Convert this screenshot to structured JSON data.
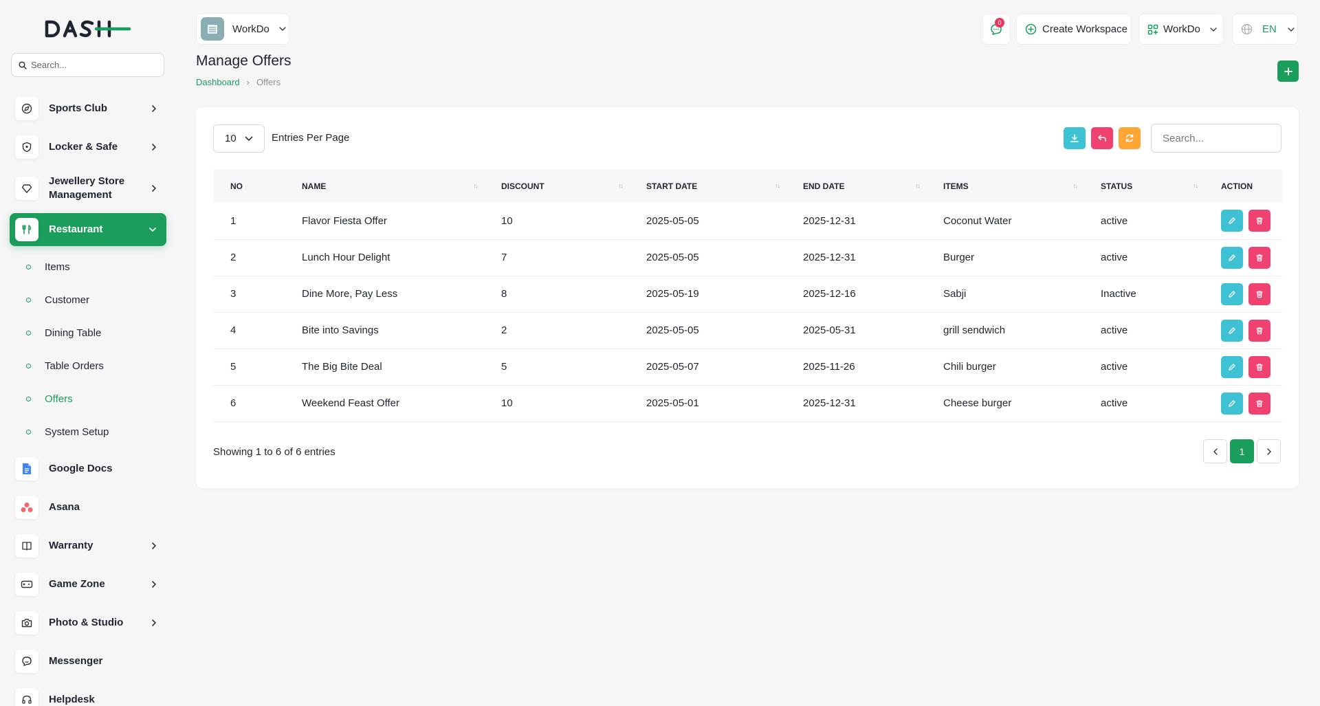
{
  "sidebar": {
    "search_placeholder": "Search...",
    "items": [
      {
        "label": "Sports Club",
        "icon": "compass-icon",
        "name": "sidebar-item-sports-club",
        "chevron": true
      },
      {
        "label": "Locker & Safe",
        "icon": "shield-icon",
        "name": "sidebar-item-locker-safe",
        "chevron": true
      },
      {
        "label": "Jewellery Store Management",
        "icon": "diamond-icon",
        "name": "sidebar-item-jewellery-store",
        "chevron": true
      },
      {
        "label": "Restaurant",
        "icon": "fork-knife-icon",
        "name": "sidebar-item-restaurant",
        "active": true
      }
    ],
    "restaurant_sub": [
      {
        "label": "Items"
      },
      {
        "label": "Customer"
      },
      {
        "label": "Dining Table"
      },
      {
        "label": "Table Orders"
      },
      {
        "label": "Offers",
        "active": true
      },
      {
        "label": "System Setup"
      }
    ],
    "items_after": [
      {
        "label": "Google Docs",
        "icon": "google-docs-icon",
        "name": "sidebar-item-google-docs"
      },
      {
        "label": "Asana",
        "icon": "asana-icon",
        "name": "sidebar-item-asana"
      },
      {
        "label": "Warranty",
        "icon": "book-icon",
        "name": "sidebar-item-warranty",
        "chevron": true
      },
      {
        "label": "Game Zone",
        "icon": "gamepad-icon",
        "name": "sidebar-item-game-zone",
        "chevron": true
      },
      {
        "label": "Photo & Studio",
        "icon": "camera-icon",
        "name": "sidebar-item-photo-studio",
        "chevron": true
      },
      {
        "label": "Messenger",
        "icon": "chat-icon",
        "name": "sidebar-item-messenger"
      },
      {
        "label": "Helpdesk",
        "icon": "headset-icon",
        "name": "sidebar-item-helpdesk"
      }
    ]
  },
  "header": {
    "workspace_name": "WorkDo",
    "message_count": "0",
    "create_workspace": "Create Workspace",
    "workspace_dropdown": "WorkDo",
    "language": "EN"
  },
  "page": {
    "title": "Manage Offers",
    "breadcrumb_home": "Dashboard",
    "breadcrumb_current": "Offers"
  },
  "table": {
    "per_page": "10",
    "per_page_label": "Entries Per Page",
    "search_placeholder": "Search...",
    "columns": [
      "NO",
      "NAME",
      "DISCOUNT",
      "START DATE",
      "END DATE",
      "ITEMS",
      "STATUS",
      "ACTION"
    ],
    "rows": [
      {
        "no": "1",
        "name": "Flavor Fiesta Offer",
        "discount": "10",
        "start": "2025-05-05",
        "end": "2025-12-31",
        "items": "Coconut Water",
        "status": "active"
      },
      {
        "no": "2",
        "name": "Lunch Hour Delight",
        "discount": "7",
        "start": "2025-05-05",
        "end": "2025-12-31",
        "items": "Burger",
        "status": "active"
      },
      {
        "no": "3",
        "name": "Dine More, Pay Less",
        "discount": "8",
        "start": "2025-05-19",
        "end": "2025-12-16",
        "items": "Sabji",
        "status": "Inactive"
      },
      {
        "no": "4",
        "name": "Bite into Savings",
        "discount": "2",
        "start": "2025-05-05",
        "end": "2025-05-31",
        "items": "grill sendwich",
        "status": "active"
      },
      {
        "no": "5",
        "name": "The Big Bite Deal",
        "discount": "5",
        "start": "2025-05-07",
        "end": "2025-11-26",
        "items": "Chili burger",
        "status": "active"
      },
      {
        "no": "6",
        "name": "Weekend Feast Offer",
        "discount": "10",
        "start": "2025-05-01",
        "end": "2025-12-31",
        "items": "Cheese burger",
        "status": "active"
      }
    ],
    "showing": "Showing 1 to 6 of 6 entries",
    "current_page": "1"
  },
  "colors": {
    "primary": "#1b9e5b",
    "info": "#3ec1d3",
    "danger": "#ef4270",
    "warning": "#ffa534"
  }
}
